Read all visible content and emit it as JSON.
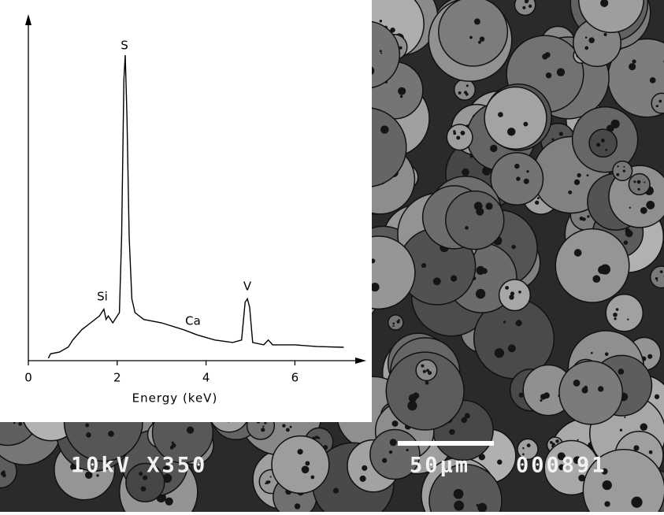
{
  "chart_data": {
    "type": "line",
    "xlabel": "Energy (keV)",
    "x": [
      0.45,
      0.5,
      0.7,
      0.9,
      1.0,
      1.2,
      1.4,
      1.6,
      1.7,
      1.75,
      1.8,
      1.9,
      2.0,
      2.05,
      2.1,
      2.15,
      2.18,
      2.22,
      2.27,
      2.33,
      2.4,
      2.6,
      3.0,
      3.5,
      3.8,
      4.2,
      4.6,
      4.8,
      4.88,
      4.93,
      4.98,
      5.05,
      5.3,
      5.4,
      5.5,
      6.0,
      6.5,
      7.1
    ],
    "values": [
      0.7,
      2,
      2.5,
      4,
      6,
      9,
      11,
      13,
      15,
      12,
      13,
      11,
      13,
      14,
      36,
      82,
      89,
      71,
      36,
      18,
      14,
      12,
      11,
      9,
      7.5,
      6,
      5.3,
      6,
      17,
      18,
      15.6,
      5.3,
      4.6,
      6,
      4.6,
      4.6,
      4.1,
      3.9
    ],
    "color": "#000000",
    "xlim": [
      0,
      7.5
    ],
    "xticks": [
      0,
      2,
      4,
      6
    ],
    "ylim": [
      0,
      100
    ],
    "annotations": [
      "S",
      "Si",
      "Ca",
      "V"
    ]
  },
  "image_overlay": {
    "voltage_magnification": "10kV X350",
    "scale_bar": "50µm",
    "micrograph_number": "000891"
  }
}
